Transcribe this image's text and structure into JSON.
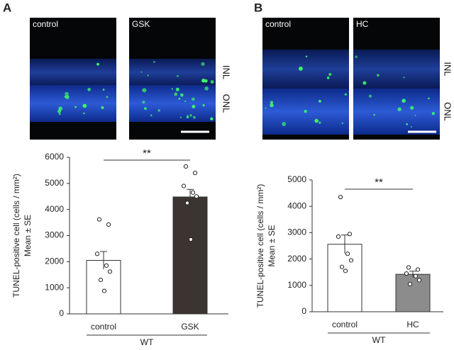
{
  "micrographs": [
    {
      "panel": "A",
      "images": [
        "control",
        "GSK"
      ],
      "layers": [
        "INL",
        "ONL"
      ]
    },
    {
      "panel": "B",
      "images": [
        "control",
        "HC"
      ],
      "layers": [
        "INL",
        "ONL"
      ]
    }
  ],
  "chart_data": [
    {
      "type": "bar",
      "ylabel": "TUNEL-positive cell (cells / mm²)",
      "ylabel_sub": "Mean ± SE",
      "categories": [
        "control",
        "GSK"
      ],
      "group": "WT",
      "colors": [
        "#ffffff",
        "#3c3431"
      ],
      "values": [
        2050,
        4480
      ],
      "errors": [
        340,
        290
      ],
      "points": [
        [
          3620,
          3420,
          2300,
          1850,
          1620,
          1300,
          880
        ],
        [
          5650,
          5400,
          4900,
          4650,
          4500,
          4250,
          2850
        ]
      ],
      "significance": "**",
      "ylim": [
        0,
        6000
      ],
      "yticks": [
        0,
        1000,
        2000,
        3000,
        4000,
        5000,
        6000
      ]
    },
    {
      "type": "bar",
      "ylabel": "TUNEL-positive cell (cells / mm²)",
      "ylabel_sub": "Mean ± SE",
      "categories": [
        "control",
        "HC"
      ],
      "group": "WT",
      "colors": [
        "#ffffff",
        "#8c8c8c"
      ],
      "values": [
        2560,
        1420
      ],
      "errors": [
        350,
        120
      ],
      "points": [
        [
          4350,
          2950,
          2850,
          2200,
          1950,
          1700,
          1550
        ],
        [
          1680,
          1600,
          1450,
          1350,
          1200,
          1050
        ]
      ],
      "significance": "**",
      "ylim": [
        0,
        5000
      ],
      "yticks": [
        0,
        1000,
        2000,
        3000,
        4000,
        5000
      ]
    }
  ]
}
